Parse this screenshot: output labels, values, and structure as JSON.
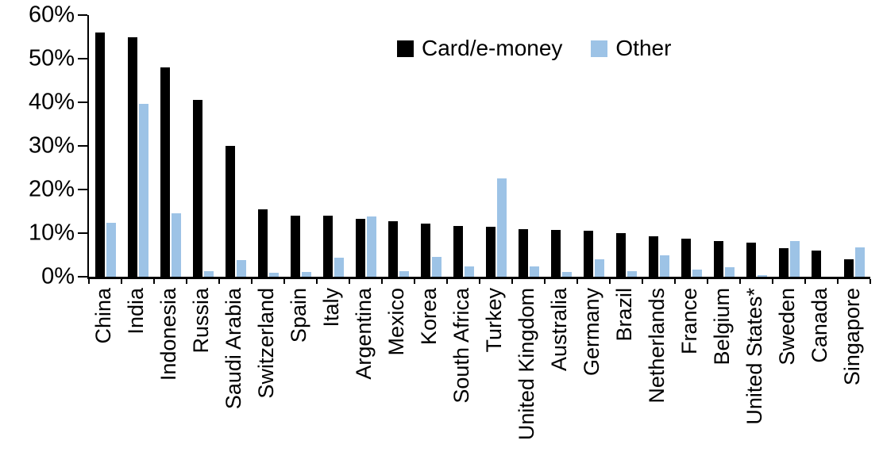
{
  "chart_data": {
    "type": "bar",
    "title": "",
    "xlabel": "",
    "ylabel": "",
    "ylim": [
      0,
      60
    ],
    "ytick_step": 10,
    "ytick_labels": [
      "0%",
      "10%",
      "20%",
      "30%",
      "40%",
      "50%",
      "60%"
    ],
    "grid": false,
    "legend_position": "top-center",
    "categories": [
      "China",
      "India",
      "Indonesia",
      "Russia",
      "Saudi Arabia",
      "Switzerland",
      "Spain",
      "Italy",
      "Argentina",
      "Mexico",
      "Korea",
      "South Africa",
      "Turkey",
      "United Kingdom",
      "Australia",
      "Germany",
      "Brazil",
      "Netherlands",
      "France",
      "Belgium",
      "United States*",
      "Sweden",
      "Canada",
      "Singapore"
    ],
    "series": [
      {
        "name": "Card/e-money",
        "color": "#000000",
        "values": [
          56,
          55,
          48,
          40.5,
          30,
          15.5,
          14,
          14,
          13.3,
          12.8,
          12.2,
          11.7,
          11.5,
          11,
          10.8,
          10.5,
          10,
          9.3,
          8.7,
          8.2,
          7.9,
          6.6,
          6,
          4
        ]
      },
      {
        "name": "Other",
        "color": "#9DC3E6",
        "values": [
          12.4,
          39.7,
          14.5,
          1.2,
          3.8,
          0.9,
          1.1,
          4.4,
          13.8,
          1.2,
          4.5,
          2.3,
          22.5,
          2.3,
          1.1,
          4,
          1.2,
          5,
          1.6,
          2.1,
          0.3,
          8.1,
          0,
          6.7
        ]
      }
    ]
  }
}
